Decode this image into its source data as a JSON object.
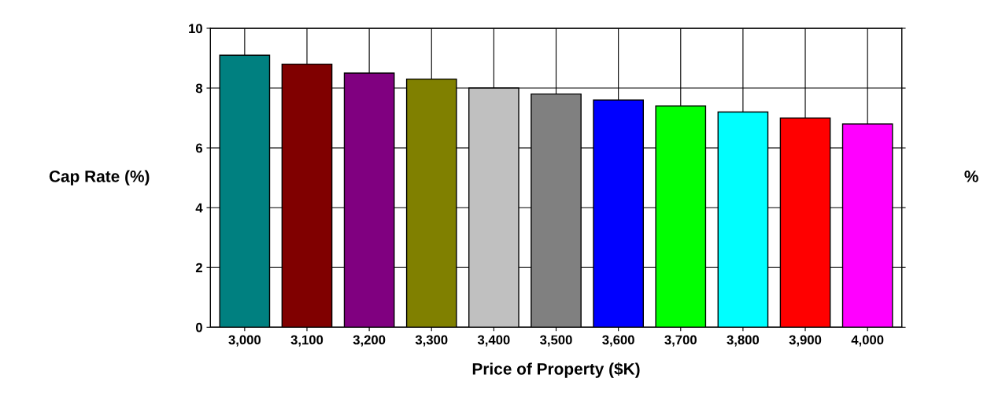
{
  "chart_data": {
    "type": "bar",
    "xlabel": "Price of Property ($K)",
    "ylabel": "Cap Rate (%)",
    "y2label": "%",
    "categories": [
      "3,000",
      "3,100",
      "3,200",
      "3,300",
      "3,400",
      "3,500",
      "3,600",
      "3,700",
      "3,800",
      "3,900",
      "4,000"
    ],
    "values": [
      9.1,
      8.8,
      8.5,
      8.3,
      8.0,
      7.8,
      7.6,
      7.4,
      7.2,
      7.0,
      6.8
    ],
    "colors": [
      "#008080",
      "#800000",
      "#800080",
      "#808000",
      "#c0c0c0",
      "#808080",
      "#0000ff",
      "#00ff00",
      "#00ffff",
      "#ff0000",
      "#ff00ff"
    ],
    "ylim": [
      0,
      10
    ],
    "yticks": [
      0,
      2,
      4,
      6,
      8,
      10
    ],
    "grid": true
  }
}
